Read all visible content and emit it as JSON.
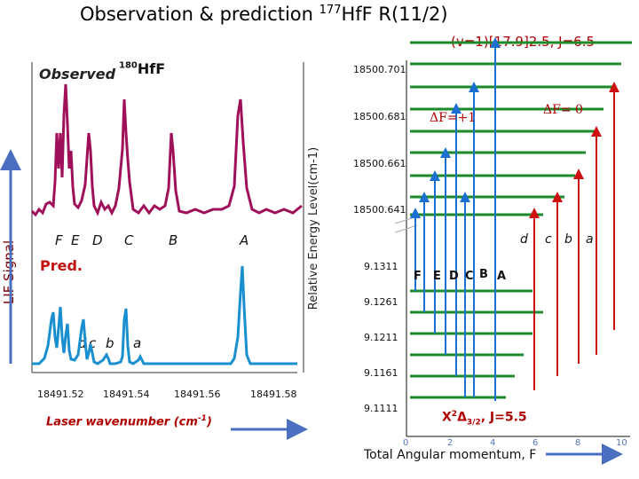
{
  "title": {
    "main": "Observation & prediction",
    "isotope_mass": "177",
    "isotope_rest": "HfF R(11/2)"
  },
  "upper_state": "(v=1)[17.9]2.5, J=6.5",
  "observed": {
    "label": "Observed",
    "iso_mass": "180",
    "iso_rest": "HfF"
  },
  "pred_label": "Pred.",
  "lif_label": "LIF Signal",
  "laser_label": "Laser wavenumber (cm",
  "laser_unit_exp": "-1",
  "laser_close": ")",
  "peak_labels_obs": [
    "F",
    "E",
    "D",
    "C",
    "B",
    "A"
  ],
  "peak_labels_pred": [
    "d",
    "c",
    "b",
    "a"
  ],
  "x_ticks": [
    "18491.52",
    "18491.54",
    "18491.56",
    "18491.58"
  ],
  "energy_axis_label": "Relative Energy Level(cm-1)",
  "upper_levels": [
    "18500.701",
    "18500.681",
    "18500.661",
    "18500.641"
  ],
  "lower_levels": [
    "9.1311",
    "9.1261",
    "9.1211",
    "9.1161",
    "9.1111"
  ],
  "dF_plus": "ΔF=+1",
  "dF_zero": "ΔF= 0",
  "transition_labels_upper": [
    "d",
    "c",
    "b",
    "a"
  ],
  "transition_labels_lower": [
    "F",
    "E",
    "D",
    "C",
    "B",
    "A"
  ],
  "ground_label": {
    "prefix": "X",
    "sup": "2",
    "delta": "Δ",
    "sub": "3/2",
    "suffix": ", J=5.5"
  },
  "f_ticks": [
    "0",
    "2",
    "4",
    "6",
    "8",
    "10"
  ],
  "f_axis_label": "Total Angular momentum, F",
  "colors": {
    "obs": "#a0105a",
    "pred": "#1a8fd0",
    "level": "#1a8a2a",
    "dF0": "#cc1111",
    "dF1": "#1a6fd0",
    "axis_arrow": "#4a6fc0"
  }
}
